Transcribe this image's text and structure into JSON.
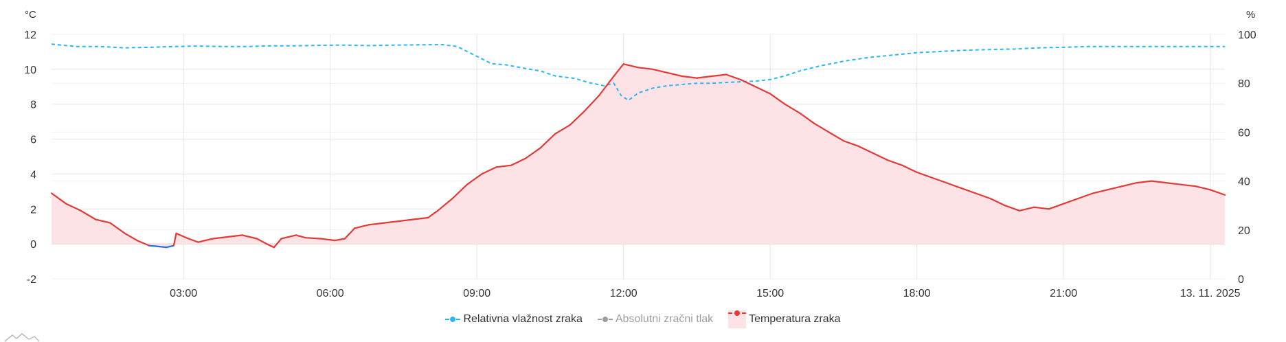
{
  "colors": {
    "humidity": "#29b6f6",
    "pressure": "#9e9e9e",
    "temperature": "#e53935",
    "temperature_fill": "#fde3e6",
    "negative": "#1e6fe8",
    "grid": "#e5e5e5"
  },
  "chart_data": {
    "type": "line",
    "left_axis": {
      "unit": "°C",
      "ylim": [
        -2,
        12
      ],
      "ticks": [
        "-2",
        "0",
        "2",
        "4",
        "6",
        "8",
        "10",
        "12"
      ]
    },
    "right_axis": {
      "unit": "%",
      "ylim": [
        0,
        100
      ],
      "ticks": [
        "0",
        "20",
        "40",
        "60",
        "80",
        "100"
      ]
    },
    "x_axis": {
      "range_hours": [
        0.3,
        24.3
      ],
      "ticks": [
        {
          "t": 3,
          "label": "03:00"
        },
        {
          "t": 6,
          "label": "06:00"
        },
        {
          "t": 9,
          "label": "09:00"
        },
        {
          "t": 12,
          "label": "12:00"
        },
        {
          "t": 15,
          "label": "15:00"
        },
        {
          "t": 18,
          "label": "18:00"
        },
        {
          "t": 21,
          "label": "21:00"
        },
        {
          "t": 24,
          "label": "13. 11. 2025"
        }
      ]
    },
    "grid": true,
    "legend_position": "bottom-center",
    "series": [
      {
        "name": "Relativna vlažnost zraka",
        "axis": "right",
        "style": "dashed",
        "visible": true,
        "points": [
          [
            0.3,
            96
          ],
          [
            0.8,
            95
          ],
          [
            1.3,
            95
          ],
          [
            1.8,
            94.5
          ],
          [
            2.3,
            94.7
          ],
          [
            2.8,
            95
          ],
          [
            3.3,
            95.2
          ],
          [
            3.8,
            95
          ],
          [
            4.3,
            95
          ],
          [
            4.8,
            95.3
          ],
          [
            5.3,
            95.3
          ],
          [
            5.8,
            95.5
          ],
          [
            6.3,
            95.6
          ],
          [
            6.8,
            95.4
          ],
          [
            7.3,
            95.6
          ],
          [
            7.8,
            95.7
          ],
          [
            8.3,
            95.8
          ],
          [
            8.6,
            95
          ],
          [
            8.9,
            92
          ],
          [
            9.3,
            88
          ],
          [
            9.6,
            87.5
          ],
          [
            10,
            86
          ],
          [
            10.3,
            85
          ],
          [
            10.6,
            83
          ],
          [
            11,
            82
          ],
          [
            11.3,
            80.2
          ],
          [
            11.6,
            79
          ],
          [
            11.8,
            80
          ],
          [
            11.95,
            75
          ],
          [
            12.1,
            73
          ],
          [
            12.3,
            76
          ],
          [
            12.6,
            78
          ],
          [
            12.9,
            79
          ],
          [
            13.2,
            79.5
          ],
          [
            13.5,
            80
          ],
          [
            13.8,
            80
          ],
          [
            14.1,
            80.3
          ],
          [
            14.4,
            80.6
          ],
          [
            14.7,
            80.9
          ],
          [
            15,
            81.5
          ],
          [
            15.3,
            83
          ],
          [
            15.6,
            85
          ],
          [
            16,
            87
          ],
          [
            16.5,
            89
          ],
          [
            17,
            90.5
          ],
          [
            17.5,
            91.5
          ],
          [
            18,
            92.5
          ],
          [
            18.5,
            93
          ],
          [
            19,
            93.5
          ],
          [
            19.5,
            93.8
          ],
          [
            20,
            94
          ],
          [
            20.5,
            94.5
          ],
          [
            21,
            94.7
          ],
          [
            21.5,
            95
          ],
          [
            22,
            95
          ],
          [
            22.5,
            95
          ],
          [
            23,
            95
          ],
          [
            23.5,
            95
          ],
          [
            24,
            95
          ],
          [
            24.3,
            95
          ]
        ]
      },
      {
        "name": "Absolutni zračni tlak",
        "axis": "right",
        "style": "dashed",
        "visible": false,
        "points": []
      },
      {
        "name": "Temperatura zraka",
        "axis": "left",
        "style": "solid-area",
        "visible": true,
        "points": [
          [
            0.3,
            2.9
          ],
          [
            0.6,
            2.3
          ],
          [
            0.9,
            1.9
          ],
          [
            1.2,
            1.4
          ],
          [
            1.5,
            1.2
          ],
          [
            1.8,
            0.6
          ],
          [
            2.05,
            0.2
          ],
          [
            2.3,
            -0.1
          ],
          [
            2.5,
            -0.15
          ],
          [
            2.65,
            -0.2
          ],
          [
            2.8,
            -0.1
          ],
          [
            2.85,
            0.6
          ],
          [
            3.1,
            0.3
          ],
          [
            3.3,
            0.1
          ],
          [
            3.6,
            0.3
          ],
          [
            3.9,
            0.4
          ],
          [
            4.2,
            0.5
          ],
          [
            4.5,
            0.3
          ],
          [
            4.7,
            0.0
          ],
          [
            4.85,
            -0.2
          ],
          [
            5.0,
            0.3
          ],
          [
            5.3,
            0.5
          ],
          [
            5.5,
            0.35
          ],
          [
            5.8,
            0.3
          ],
          [
            6.1,
            0.2
          ],
          [
            6.3,
            0.3
          ],
          [
            6.5,
            0.9
          ],
          [
            6.8,
            1.1
          ],
          [
            7.1,
            1.2
          ],
          [
            7.4,
            1.3
          ],
          [
            7.7,
            1.4
          ],
          [
            8.0,
            1.5
          ],
          [
            8.2,
            1.9
          ],
          [
            8.5,
            2.6
          ],
          [
            8.8,
            3.4
          ],
          [
            9.1,
            4.0
          ],
          [
            9.4,
            4.4
          ],
          [
            9.7,
            4.5
          ],
          [
            10.0,
            4.9
          ],
          [
            10.3,
            5.5
          ],
          [
            10.6,
            6.3
          ],
          [
            10.9,
            6.8
          ],
          [
            11.2,
            7.6
          ],
          [
            11.5,
            8.5
          ],
          [
            11.8,
            9.6
          ],
          [
            12.0,
            10.3
          ],
          [
            12.3,
            10.1
          ],
          [
            12.6,
            10.0
          ],
          [
            12.9,
            9.8
          ],
          [
            13.2,
            9.6
          ],
          [
            13.5,
            9.5
          ],
          [
            13.8,
            9.6
          ],
          [
            14.1,
            9.7
          ],
          [
            14.4,
            9.4
          ],
          [
            14.7,
            9.0
          ],
          [
            15.0,
            8.6
          ],
          [
            15.3,
            8.0
          ],
          [
            15.6,
            7.5
          ],
          [
            15.9,
            6.9
          ],
          [
            16.2,
            6.4
          ],
          [
            16.5,
            5.9
          ],
          [
            16.8,
            5.6
          ],
          [
            17.1,
            5.2
          ],
          [
            17.4,
            4.8
          ],
          [
            17.7,
            4.5
          ],
          [
            18.0,
            4.1
          ],
          [
            18.3,
            3.8
          ],
          [
            18.6,
            3.5
          ],
          [
            18.9,
            3.2
          ],
          [
            19.2,
            2.9
          ],
          [
            19.5,
            2.6
          ],
          [
            19.8,
            2.2
          ],
          [
            20.1,
            1.9
          ],
          [
            20.4,
            2.1
          ],
          [
            20.7,
            2.0
          ],
          [
            21.0,
            2.3
          ],
          [
            21.3,
            2.6
          ],
          [
            21.6,
            2.9
          ],
          [
            21.9,
            3.1
          ],
          [
            22.2,
            3.3
          ],
          [
            22.5,
            3.5
          ],
          [
            22.8,
            3.6
          ],
          [
            23.1,
            3.5
          ],
          [
            23.4,
            3.4
          ],
          [
            23.7,
            3.3
          ],
          [
            24.0,
            3.1
          ],
          [
            24.3,
            2.8
          ]
        ]
      }
    ]
  },
  "legend": [
    {
      "label": "Relativna vlažnost zraka",
      "icon": "dashed-line-dot",
      "active": true
    },
    {
      "label": "Absolutni zračni tlak",
      "icon": "dashed-line-dot",
      "active": false
    },
    {
      "label": "Temperatura zraka",
      "icon": "dashed-line-dot-area",
      "active": true
    }
  ],
  "logo": {
    "icon": "mountain-logo-icon"
  }
}
